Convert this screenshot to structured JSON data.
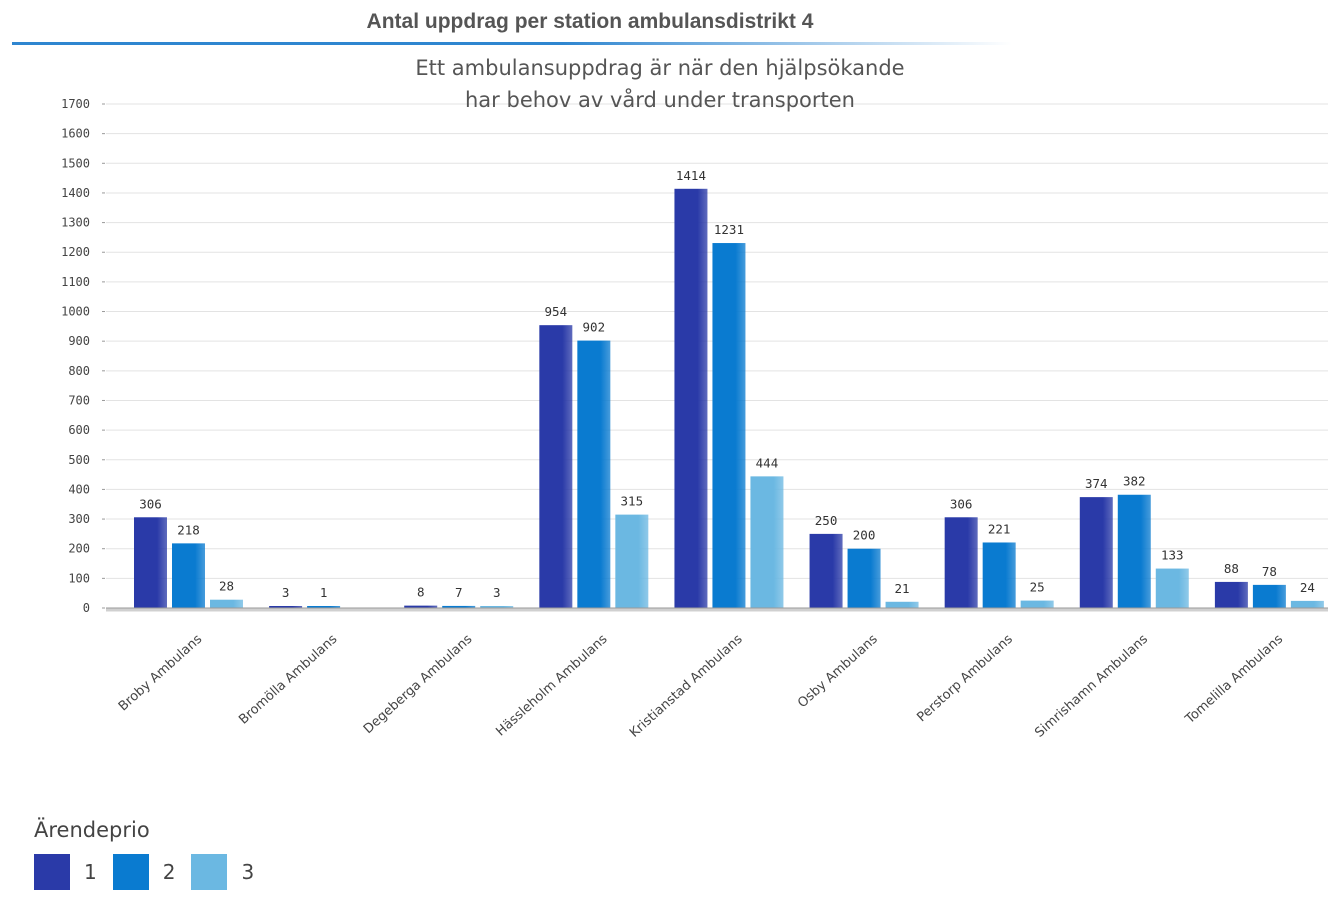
{
  "chart_data": {
    "type": "bar",
    "title": "Antal uppdrag per station ambulansdistrikt 4",
    "subtitle_lines": [
      "Ett ambulansuppdrag är när den hjälpsökande",
      "har behov av vård under transporten"
    ],
    "categories": [
      "Broby Ambulans",
      "Bromölla Ambulans",
      "Degeberga Ambulans",
      "Hässleholm Ambulans",
      "Kristianstad Ambulans",
      "Osby Ambulans",
      "Perstorp Ambulans",
      "Simrishamn Ambulans",
      "Tomelilla Ambulans"
    ],
    "series": [
      {
        "name": "1",
        "color": "#2a3aa8",
        "values": [
          306,
          3,
          8,
          954,
          1414,
          250,
          306,
          374,
          88
        ]
      },
      {
        "name": "2",
        "color": "#0a7bd0",
        "values": [
          218,
          1,
          7,
          902,
          1231,
          200,
          221,
          382,
          78
        ]
      },
      {
        "name": "3",
        "color": "#6bb8e2",
        "values": [
          28,
          null,
          3,
          315,
          444,
          21,
          25,
          133,
          24
        ]
      }
    ],
    "ylim": [
      0,
      1700
    ],
    "yticks": [
      0,
      100,
      200,
      300,
      400,
      500,
      600,
      700,
      800,
      900,
      1000,
      1100,
      1200,
      1300,
      1400,
      1500,
      1600,
      1700
    ],
    "grid": true,
    "legend_title": "Ärendeprio",
    "legend_position": "bottom-left"
  }
}
